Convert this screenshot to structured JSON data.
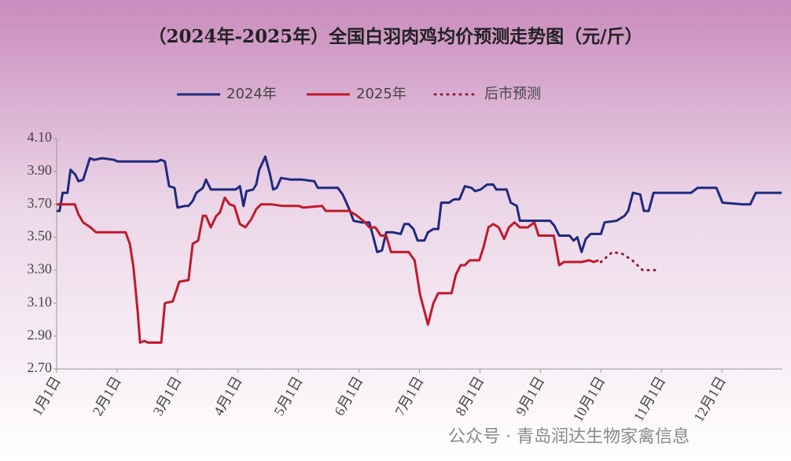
{
  "chart_data": {
    "type": "line",
    "title": "（2024年-2025年）全国白羽肉鸡均价预测走势图（元/斤）",
    "watermark": "公众号 · 青岛润达生物家禽信息",
    "xlim": [
      0,
      12
    ],
    "ylim": [
      2.7,
      4.1
    ],
    "grid": false,
    "legend": "top",
    "xticks": [
      {
        "value": 0,
        "label": "1月1日"
      },
      {
        "value": 1,
        "label": "2月1日"
      },
      {
        "value": 2,
        "label": "3月1日"
      },
      {
        "value": 3,
        "label": "4月1日"
      },
      {
        "value": 4,
        "label": "5月1日"
      },
      {
        "value": 5,
        "label": "6月1日"
      },
      {
        "value": 6,
        "label": "7月1日"
      },
      {
        "value": 7,
        "label": "8月1日"
      },
      {
        "value": 8,
        "label": "9月1日"
      },
      {
        "value": 9,
        "label": "10月1日"
      },
      {
        "value": 10,
        "label": "11月1日"
      },
      {
        "value": 11,
        "label": "12月1日"
      }
    ],
    "yticks": [
      {
        "value": 2.7,
        "label": "2.70"
      },
      {
        "value": 2.9,
        "label": "2.90"
      },
      {
        "value": 3.1,
        "label": "3.10"
      },
      {
        "value": 3.3,
        "label": "3.30"
      },
      {
        "value": 3.5,
        "label": "3.50"
      },
      {
        "value": 3.7,
        "label": "3.70"
      },
      {
        "value": 3.9,
        "label": "3.90"
      },
      {
        "value": 4.1,
        "label": "4.10"
      }
    ],
    "series": [
      {
        "name": "2024年",
        "color": "#1f2a7e",
        "line_style": "solid",
        "x": [
          0,
          0.05,
          0.1,
          0.18,
          0.23,
          0.31,
          0.36,
          0.44,
          0.49,
          0.55,
          0.62,
          0.75,
          0.95,
          1.01,
          1.14,
          1.4,
          1.66,
          1.73,
          1.79,
          1.86,
          1.95,
          2.0,
          2.12,
          2.18,
          2.25,
          2.31,
          2.42,
          2.47,
          2.55,
          2.83,
          2.96,
          3.03,
          3.09,
          3.14,
          3.25,
          3.3,
          3.35,
          3.45,
          3.53,
          3.58,
          3.64,
          3.71,
          3.87,
          4.06,
          4.26,
          4.32,
          4.65,
          4.73,
          4.84,
          4.91,
          5.04,
          5.17,
          5.23,
          5.3,
          5.38,
          5.45,
          5.56,
          5.69,
          5.75,
          5.82,
          5.9,
          5.97,
          6.08,
          6.14,
          6.23,
          6.31,
          6.36,
          6.49,
          6.57,
          6.66,
          6.75,
          6.86,
          6.92,
          7.01,
          7.12,
          7.22,
          7.27,
          7.44,
          7.51,
          7.61,
          7.66,
          8.16,
          8.23,
          8.31,
          8.48,
          8.55,
          8.61,
          8.68,
          8.75,
          8.83,
          9.0,
          9.06,
          9.26,
          9.39,
          9.45,
          9.53,
          9.65,
          9.71,
          9.79,
          9.87,
          10.49,
          10.6,
          10.91,
          11.01,
          11.34,
          11.47,
          11.56,
          11.99
        ],
        "values": [
          3.66,
          3.66,
          3.77,
          3.77,
          3.91,
          3.88,
          3.84,
          3.85,
          3.91,
          3.98,
          3.97,
          3.98,
          3.97,
          3.96,
          3.96,
          3.96,
          3.96,
          3.97,
          3.96,
          3.81,
          3.8,
          3.68,
          3.69,
          3.69,
          3.72,
          3.77,
          3.8,
          3.85,
          3.79,
          3.79,
          3.79,
          3.81,
          3.69,
          3.78,
          3.79,
          3.82,
          3.91,
          3.99,
          3.88,
          3.79,
          3.8,
          3.86,
          3.85,
          3.85,
          3.84,
          3.8,
          3.8,
          3.76,
          3.67,
          3.6,
          3.59,
          3.59,
          3.51,
          3.41,
          3.42,
          3.53,
          3.53,
          3.52,
          3.58,
          3.58,
          3.55,
          3.48,
          3.48,
          3.53,
          3.55,
          3.55,
          3.71,
          3.71,
          3.73,
          3.73,
          3.81,
          3.8,
          3.78,
          3.79,
          3.82,
          3.82,
          3.79,
          3.79,
          3.71,
          3.69,
          3.6,
          3.6,
          3.57,
          3.51,
          3.51,
          3.48,
          3.5,
          3.41,
          3.49,
          3.52,
          3.52,
          3.59,
          3.6,
          3.63,
          3.66,
          3.77,
          3.76,
          3.66,
          3.66,
          3.77,
          3.77,
          3.8,
          3.8,
          3.71,
          3.7,
          3.7,
          3.77,
          3.77
        ]
      },
      {
        "name": "2025年",
        "color": "#c01a2c",
        "line_style": "solid",
        "x": [
          0,
          0.3,
          0.36,
          0.44,
          0.56,
          0.65,
          1.14,
          1.21,
          1.27,
          1.34,
          1.38,
          1.45,
          1.51,
          1.73,
          1.79,
          1.92,
          2.03,
          2.18,
          2.25,
          2.34,
          2.42,
          2.47,
          2.55,
          2.64,
          2.7,
          2.78,
          2.86,
          2.94,
          3.03,
          3.12,
          3.22,
          3.3,
          3.38,
          3.55,
          3.74,
          4.0,
          4.08,
          4.39,
          4.45,
          4.84,
          4.97,
          5.1,
          5.17,
          5.27,
          5.36,
          5.45,
          5.53,
          5.82,
          5.92,
          6.01,
          6.14,
          6.23,
          6.31,
          6.53,
          6.6,
          6.68,
          6.75,
          6.83,
          6.99,
          7.06,
          7.14,
          7.22,
          7.31,
          7.4,
          7.48,
          7.57,
          7.66,
          7.79,
          7.9,
          7.97,
          8.22,
          8.31,
          8.39,
          8.68,
          8.81,
          8.88,
          8.96
        ],
        "values": [
          3.7,
          3.7,
          3.64,
          3.59,
          3.56,
          3.53,
          3.53,
          3.46,
          3.32,
          3.05,
          2.86,
          2.87,
          2.86,
          2.86,
          3.1,
          3.11,
          3.23,
          3.24,
          3.46,
          3.48,
          3.63,
          3.63,
          3.56,
          3.63,
          3.65,
          3.74,
          3.7,
          3.69,
          3.58,
          3.56,
          3.61,
          3.67,
          3.7,
          3.7,
          3.69,
          3.69,
          3.68,
          3.69,
          3.66,
          3.66,
          3.63,
          3.59,
          3.56,
          3.56,
          3.51,
          3.51,
          3.41,
          3.41,
          3.36,
          3.15,
          2.97,
          3.1,
          3.16,
          3.16,
          3.27,
          3.33,
          3.33,
          3.36,
          3.36,
          3.44,
          3.56,
          3.58,
          3.56,
          3.49,
          3.56,
          3.59,
          3.56,
          3.56,
          3.59,
          3.51,
          3.51,
          3.33,
          3.35,
          3.35,
          3.36,
          3.35,
          3.36
        ]
      },
      {
        "name": "后市预测",
        "color": "#8e1c3c",
        "line_style": "dotted",
        "x": [
          9.0,
          9.19,
          9.35,
          9.52,
          9.69,
          9.95
        ],
        "values": [
          3.35,
          3.41,
          3.4,
          3.36,
          3.3,
          3.3
        ]
      }
    ]
  }
}
